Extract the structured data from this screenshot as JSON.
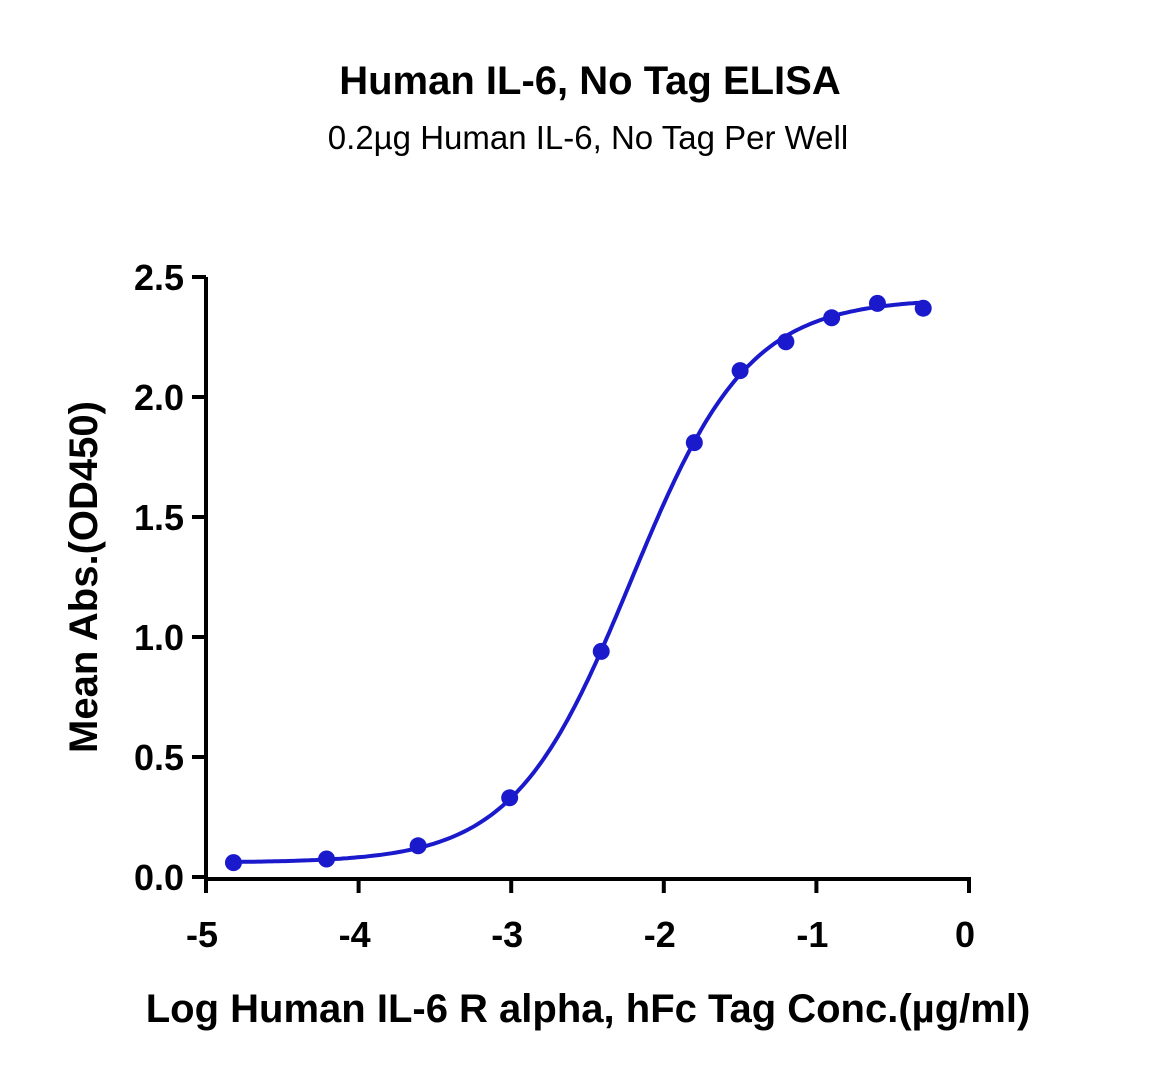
{
  "chart_data": {
    "type": "scatter",
    "title": "Human IL-6, No Tag ELISA",
    "subtitle": "0.2µg Human IL-6, No Tag Per Well",
    "xlabel": "Log Human IL-6 R alpha, hFc Tag Conc.(µg/ml)",
    "ylabel": "Mean Abs.(OD450)",
    "xlim": [
      -5,
      0
    ],
    "ylim": [
      0,
      2.5
    ],
    "xticks": [
      "-5",
      "-4",
      "-3",
      "-2",
      "-1",
      "0"
    ],
    "yticks": [
      "0.0",
      "0.5",
      "1.0",
      "1.5",
      "2.0",
      "2.5"
    ],
    "grid": false,
    "series": [
      {
        "name": "Human IL-6 R alpha, hFc Tag",
        "color": "#1a1acc",
        "x": [
          -4.82,
          -4.21,
          -3.61,
          -3.01,
          -2.41,
          -1.8,
          -1.5,
          -1.2,
          -0.9,
          -0.6,
          -0.3
        ],
        "y": [
          0.06,
          0.075,
          0.13,
          0.33,
          0.94,
          1.81,
          2.11,
          2.23,
          2.33,
          2.39,
          2.37
        ],
        "fit": {
          "model": "4PL",
          "bottom": 0.06,
          "top": 2.41,
          "logEC50": -2.215,
          "hill": 1.13
        }
      }
    ]
  }
}
